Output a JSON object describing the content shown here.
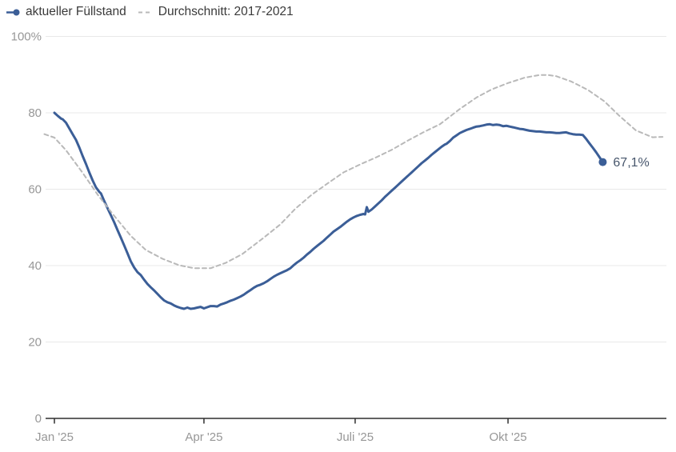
{
  "chart_data": {
    "type": "line",
    "title": "",
    "unit": "%",
    "grid": "horizontal",
    "legend_position": "top-left",
    "x_axis": {
      "tick_labels": [
        "Jan '25",
        "Apr '25",
        "Juli '25",
        "Okt '25"
      ],
      "tick_days": [
        0,
        90,
        181,
        273
      ],
      "domain_days": [
        -6,
        368
      ]
    },
    "y_axis": {
      "ticks": [
        0,
        20,
        40,
        60,
        80,
        100
      ],
      "tick_labels": [
        "0",
        "20",
        "40",
        "60",
        "80",
        "100%"
      ],
      "range": [
        0,
        100
      ]
    },
    "series": [
      {
        "name": "aktueller Füllstand",
        "color": "#3b5e97",
        "style": "solid",
        "width": 3,
        "end_marker": true,
        "end_label": "67,1%",
        "points": [
          [
            0,
            80.0
          ],
          [
            2,
            79.2
          ],
          [
            4,
            78.5
          ],
          [
            5,
            78.3
          ],
          [
            7,
            77.4
          ],
          [
            9,
            75.9
          ],
          [
            11,
            74.4
          ],
          [
            13,
            72.9
          ],
          [
            15,
            70.9
          ],
          [
            17,
            68.7
          ],
          [
            19,
            66.6
          ],
          [
            21,
            64.4
          ],
          [
            23,
            62.3
          ],
          [
            25,
            60.5
          ],
          [
            27,
            59.3
          ],
          [
            28,
            58.9
          ],
          [
            30,
            56.9
          ],
          [
            32,
            55.0
          ],
          [
            34,
            53.2
          ],
          [
            36,
            51.3
          ],
          [
            38,
            49.3
          ],
          [
            40,
            47.3
          ],
          [
            42,
            45.3
          ],
          [
            44,
            43.2
          ],
          [
            46,
            41.1
          ],
          [
            48,
            39.5
          ],
          [
            50,
            38.3
          ],
          [
            52,
            37.5
          ],
          [
            54,
            36.3
          ],
          [
            56,
            35.2
          ],
          [
            58,
            34.3
          ],
          [
            60,
            33.5
          ],
          [
            62,
            32.6
          ],
          [
            64,
            31.7
          ],
          [
            66,
            30.9
          ],
          [
            68,
            30.4
          ],
          [
            70,
            30.1
          ],
          [
            72,
            29.6
          ],
          [
            74,
            29.2
          ],
          [
            76,
            28.9
          ],
          [
            78,
            28.7
          ],
          [
            80,
            29.0
          ],
          [
            82,
            28.7
          ],
          [
            84,
            28.8
          ],
          [
            86,
            29.0
          ],
          [
            88,
            29.2
          ],
          [
            90,
            28.8
          ],
          [
            92,
            29.1
          ],
          [
            94,
            29.4
          ],
          [
            96,
            29.4
          ],
          [
            98,
            29.3
          ],
          [
            100,
            29.8
          ],
          [
            102,
            30.1
          ],
          [
            104,
            30.4
          ],
          [
            106,
            30.8
          ],
          [
            108,
            31.1
          ],
          [
            110,
            31.5
          ],
          [
            112,
            31.9
          ],
          [
            114,
            32.4
          ],
          [
            116,
            33.0
          ],
          [
            118,
            33.6
          ],
          [
            120,
            34.2
          ],
          [
            122,
            34.7
          ],
          [
            124,
            35.0
          ],
          [
            126,
            35.4
          ],
          [
            128,
            35.9
          ],
          [
            130,
            36.5
          ],
          [
            132,
            37.1
          ],
          [
            134,
            37.6
          ],
          [
            136,
            38.0
          ],
          [
            138,
            38.4
          ],
          [
            140,
            38.8
          ],
          [
            142,
            39.3
          ],
          [
            144,
            40.1
          ],
          [
            146,
            40.8
          ],
          [
            148,
            41.4
          ],
          [
            150,
            42.1
          ],
          [
            152,
            42.9
          ],
          [
            154,
            43.6
          ],
          [
            156,
            44.4
          ],
          [
            158,
            45.1
          ],
          [
            160,
            45.8
          ],
          [
            162,
            46.5
          ],
          [
            164,
            47.3
          ],
          [
            166,
            48.1
          ],
          [
            168,
            48.9
          ],
          [
            170,
            49.5
          ],
          [
            172,
            50.1
          ],
          [
            174,
            50.8
          ],
          [
            176,
            51.5
          ],
          [
            178,
            52.1
          ],
          [
            180,
            52.6
          ],
          [
            182,
            53.0
          ],
          [
            184,
            53.3
          ],
          [
            186,
            53.5
          ],
          [
            187,
            53.4
          ],
          [
            188,
            55.3
          ],
          [
            189,
            54.1
          ],
          [
            191,
            54.7
          ],
          [
            193,
            55.5
          ],
          [
            195,
            56.3
          ],
          [
            197,
            57.1
          ],
          [
            199,
            58.0
          ],
          [
            201,
            58.8
          ],
          [
            203,
            59.6
          ],
          [
            205,
            60.4
          ],
          [
            207,
            61.2
          ],
          [
            209,
            62.0
          ],
          [
            211,
            62.8
          ],
          [
            213,
            63.6
          ],
          [
            215,
            64.4
          ],
          [
            217,
            65.2
          ],
          [
            219,
            66.0
          ],
          [
            221,
            66.8
          ],
          [
            223,
            67.5
          ],
          [
            225,
            68.2
          ],
          [
            227,
            69.0
          ],
          [
            229,
            69.7
          ],
          [
            231,
            70.4
          ],
          [
            233,
            71.1
          ],
          [
            235,
            71.7
          ],
          [
            236,
            71.9
          ],
          [
            238,
            72.6
          ],
          [
            240,
            73.5
          ],
          [
            242,
            74.1
          ],
          [
            244,
            74.7
          ],
          [
            246,
            75.1
          ],
          [
            248,
            75.5
          ],
          [
            250,
            75.8
          ],
          [
            252,
            76.1
          ],
          [
            254,
            76.4
          ],
          [
            256,
            76.5
          ],
          [
            258,
            76.7
          ],
          [
            260,
            76.9
          ],
          [
            262,
            77.0
          ],
          [
            264,
            76.8
          ],
          [
            266,
            76.9
          ],
          [
            268,
            76.8
          ],
          [
            270,
            76.5
          ],
          [
            272,
            76.6
          ],
          [
            274,
            76.4
          ],
          [
            276,
            76.2
          ],
          [
            278,
            76.0
          ],
          [
            280,
            75.8
          ],
          [
            282,
            75.7
          ],
          [
            284,
            75.5
          ],
          [
            286,
            75.3
          ],
          [
            288,
            75.2
          ],
          [
            290,
            75.1
          ],
          [
            292,
            75.1
          ],
          [
            294,
            75.0
          ],
          [
            296,
            74.9
          ],
          [
            298,
            74.9
          ],
          [
            300,
            74.8
          ],
          [
            302,
            74.7
          ],
          [
            304,
            74.7
          ],
          [
            306,
            74.8
          ],
          [
            308,
            74.9
          ],
          [
            310,
            74.6
          ],
          [
            312,
            74.4
          ],
          [
            314,
            74.3
          ],
          [
            316,
            74.3
          ],
          [
            318,
            74.2
          ],
          [
            320,
            73.2
          ],
          [
            322,
            72.0
          ],
          [
            324,
            70.9
          ],
          [
            326,
            69.7
          ],
          [
            328,
            68.4
          ],
          [
            330,
            67.1
          ]
        ]
      },
      {
        "name": "Durchschnitt: 2017-2021",
        "color": "#b9b9b9",
        "style": "dashed",
        "width": 2,
        "end_marker": false,
        "points": [
          [
            -6,
            74.4
          ],
          [
            0,
            73.5
          ],
          [
            7,
            70.2
          ],
          [
            17,
            64.3
          ],
          [
            26,
            58.6
          ],
          [
            36,
            53.0
          ],
          [
            46,
            47.8
          ],
          [
            55,
            44.1
          ],
          [
            65,
            41.8
          ],
          [
            75,
            40.1
          ],
          [
            84,
            39.3
          ],
          [
            94,
            39.3
          ],
          [
            103,
            40.7
          ],
          [
            113,
            43.0
          ],
          [
            126,
            47.3
          ],
          [
            136,
            50.8
          ],
          [
            145,
            54.9
          ],
          [
            155,
            58.6
          ],
          [
            165,
            61.7
          ],
          [
            174,
            64.4
          ],
          [
            184,
            66.5
          ],
          [
            193,
            68.2
          ],
          [
            203,
            70.3
          ],
          [
            213,
            72.8
          ],
          [
            222,
            74.9
          ],
          [
            232,
            77.0
          ],
          [
            244,
            81.0
          ],
          [
            254,
            84.0
          ],
          [
            263,
            86.1
          ],
          [
            273,
            87.8
          ],
          [
            283,
            89.2
          ],
          [
            292,
            89.9
          ],
          [
            297,
            89.9
          ],
          [
            302,
            89.6
          ],
          [
            311,
            88.2
          ],
          [
            321,
            86.0
          ],
          [
            331,
            83.0
          ],
          [
            340,
            79.2
          ],
          [
            350,
            75.4
          ],
          [
            360,
            73.6
          ],
          [
            366,
            73.7
          ]
        ]
      }
    ]
  },
  "colors": {
    "background": "#ffffff",
    "grid": "#e8e8e8",
    "axis": "#2f2f2f",
    "tick_label": "#979797",
    "legend_text": "#3a3a3a",
    "end_label": "#47566c",
    "series_current": "#3b5e97",
    "series_average": "#b9b9b9"
  }
}
